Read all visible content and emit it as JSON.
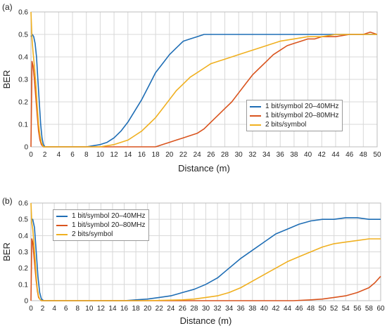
{
  "colors": {
    "blue": "#1f6eb5",
    "red": "#d9541e",
    "yellow": "#f0b020",
    "grid": "#d8d8d8"
  },
  "chart_data": [
    {
      "type": "line",
      "panel_label": "(a)",
      "xlabel": "Distance (m)",
      "ylabel": "BER",
      "xlim": [
        0,
        50
      ],
      "ylim": [
        0,
        0.6
      ],
      "xticks": [
        0,
        2,
        4,
        6,
        8,
        10,
        12,
        14,
        16,
        18,
        20,
        22,
        24,
        26,
        28,
        30,
        32,
        34,
        36,
        38,
        40,
        42,
        44,
        46,
        48,
        50
      ],
      "yticks": [
        0,
        0.1,
        0.2,
        0.3,
        0.4,
        0.5,
        0.6
      ],
      "grid": true,
      "legend_position": "center-right",
      "series": [
        {
          "name": "1 bit/symbol 20–40MHz",
          "color": "#1f6eb5",
          "x": [
            0,
            0.2,
            0.4,
            0.6,
            0.8,
            1.0,
            1.2,
            1.4,
            1.6,
            1.8,
            2.0,
            2.5,
            4,
            6,
            8,
            10,
            11,
            12,
            13,
            14,
            15,
            16,
            17,
            18,
            19,
            20,
            21,
            22,
            23,
            24,
            25,
            26,
            27,
            28,
            30,
            32,
            34,
            36,
            38,
            40,
            42,
            44,
            46,
            48,
            49,
            50
          ],
          "y": [
            0.49,
            0.5,
            0.49,
            0.46,
            0.4,
            0.3,
            0.2,
            0.1,
            0.04,
            0.01,
            0,
            0,
            0,
            0,
            0,
            0.01,
            0.02,
            0.04,
            0.07,
            0.11,
            0.16,
            0.21,
            0.27,
            0.33,
            0.37,
            0.41,
            0.44,
            0.47,
            0.48,
            0.49,
            0.5,
            0.5,
            0.5,
            0.5,
            0.5,
            0.5,
            0.5,
            0.5,
            0.5,
            0.5,
            0.5,
            0.5,
            0.5,
            0.5,
            0.5,
            0.5
          ]
        },
        {
          "name": "1 bit/symbol 20–80MHz",
          "color": "#d9541e",
          "x": [
            0,
            0.15,
            0.3,
            0.5,
            0.7,
            0.9,
            1.1,
            1.3,
            1.5,
            1.8,
            2.0,
            4,
            8,
            12,
            14,
            16,
            17,
            18,
            19,
            20,
            21,
            22,
            23,
            24,
            25,
            26,
            27,
            28,
            29,
            30,
            31,
            32,
            33,
            34,
            35,
            36,
            37,
            38,
            39,
            40,
            41,
            42,
            44,
            46,
            48,
            49,
            50
          ],
          "y": [
            0,
            0.38,
            0.36,
            0.3,
            0.22,
            0.14,
            0.07,
            0.03,
            0.01,
            0,
            0,
            0,
            0,
            0,
            0,
            0,
            0,
            0,
            0.01,
            0.02,
            0.03,
            0.04,
            0.05,
            0.06,
            0.08,
            0.11,
            0.14,
            0.17,
            0.2,
            0.24,
            0.28,
            0.32,
            0.35,
            0.38,
            0.41,
            0.43,
            0.45,
            0.46,
            0.47,
            0.48,
            0.48,
            0.49,
            0.49,
            0.5,
            0.5,
            0.51,
            0.5
          ]
        },
        {
          "name": "2 bits/symbol",
          "color": "#f0b020",
          "x": [
            0,
            0.15,
            0.3,
            0.5,
            0.7,
            0.9,
            1.1,
            1.3,
            1.5,
            1.8,
            2.0,
            4,
            8,
            10,
            12,
            13,
            14,
            15,
            16,
            17,
            18,
            19,
            20,
            21,
            22,
            23,
            24,
            25,
            26,
            27,
            28,
            30,
            32,
            34,
            36,
            38,
            40,
            42,
            44,
            46,
            48,
            50
          ],
          "y": [
            0.6,
            0.48,
            0.42,
            0.36,
            0.28,
            0.18,
            0.1,
            0.05,
            0.02,
            0,
            0,
            0,
            0,
            0,
            0.01,
            0.02,
            0.03,
            0.05,
            0.07,
            0.1,
            0.13,
            0.17,
            0.21,
            0.25,
            0.28,
            0.31,
            0.33,
            0.35,
            0.37,
            0.38,
            0.39,
            0.41,
            0.43,
            0.45,
            0.47,
            0.48,
            0.49,
            0.49,
            0.5,
            0.5,
            0.5,
            0.5
          ]
        }
      ]
    },
    {
      "type": "line",
      "panel_label": "(b)",
      "xlabel": "Distance (m)",
      "ylabel": "BER",
      "xlim": [
        0,
        60
      ],
      "ylim": [
        0,
        0.6
      ],
      "xticks": [
        0,
        2,
        4,
        6,
        8,
        10,
        12,
        14,
        16,
        18,
        20,
        22,
        24,
        26,
        28,
        30,
        32,
        34,
        36,
        38,
        40,
        42,
        44,
        46,
        48,
        50,
        52,
        54,
        56,
        58,
        60
      ],
      "yticks": [
        0,
        0.1,
        0.2,
        0.3,
        0.4,
        0.5,
        0.6
      ],
      "grid": true,
      "legend_position": "upper-left",
      "series": [
        {
          "name": "1 bit/symbol 20–40MHz",
          "color": "#1f6eb5",
          "x": [
            0,
            0.3,
            0.6,
            0.9,
            1.2,
            1.5,
            1.8,
            2.2,
            4,
            8,
            12,
            16,
            18,
            20,
            22,
            24,
            26,
            28,
            30,
            32,
            34,
            36,
            38,
            40,
            42,
            44,
            46,
            48,
            50,
            52,
            54,
            56,
            58,
            60
          ],
          "y": [
            0.5,
            0.5,
            0.45,
            0.3,
            0.15,
            0.05,
            0.01,
            0,
            0,
            0,
            0,
            0,
            0.005,
            0.01,
            0.02,
            0.03,
            0.05,
            0.07,
            0.1,
            0.14,
            0.2,
            0.26,
            0.31,
            0.36,
            0.41,
            0.44,
            0.47,
            0.49,
            0.5,
            0.5,
            0.51,
            0.51,
            0.5,
            0.5
          ]
        },
        {
          "name": "1 bit/symbol 20–80MHz",
          "color": "#d9541e",
          "x": [
            0,
            0.15,
            0.3,
            0.5,
            0.7,
            0.9,
            1.1,
            1.3,
            1.5,
            1.8,
            2.0,
            4,
            10,
            20,
            30,
            40,
            45,
            48,
            50,
            52,
            54,
            56,
            58,
            59,
            60
          ],
          "y": [
            0,
            0.38,
            0.36,
            0.28,
            0.2,
            0.12,
            0.06,
            0.02,
            0.01,
            0,
            0,
            0,
            0,
            0,
            0,
            0,
            0,
            0.005,
            0.01,
            0.02,
            0.03,
            0.05,
            0.08,
            0.11,
            0.15
          ]
        },
        {
          "name": "2 bits/symbol",
          "color": "#f0b020",
          "x": [
            0,
            0.15,
            0.3,
            0.5,
            0.7,
            0.9,
            1.1,
            1.3,
            1.5,
            1.8,
            2.0,
            4,
            10,
            20,
            26,
            28,
            30,
            32,
            34,
            36,
            38,
            40,
            42,
            44,
            46,
            48,
            50,
            52,
            54,
            56,
            58,
            60
          ],
          "y": [
            0.6,
            0.48,
            0.44,
            0.36,
            0.26,
            0.15,
            0.07,
            0.03,
            0.01,
            0,
            0,
            0,
            0,
            0,
            0.005,
            0.01,
            0.02,
            0.03,
            0.05,
            0.08,
            0.12,
            0.16,
            0.2,
            0.24,
            0.27,
            0.3,
            0.33,
            0.35,
            0.36,
            0.37,
            0.38,
            0.38
          ]
        }
      ]
    }
  ]
}
